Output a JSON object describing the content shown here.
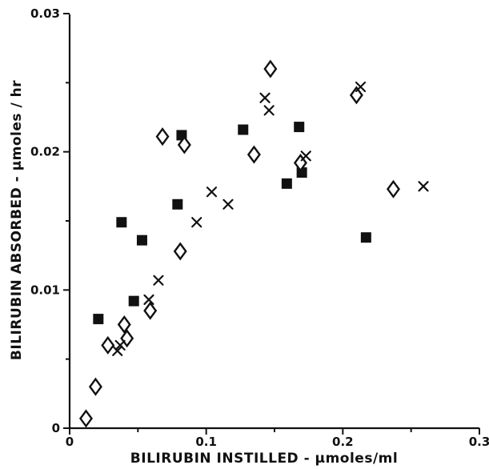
{
  "chart_data": {
    "type": "scatter",
    "xlabel": "BILIRUBIN INSTILLED - µmoles/ml",
    "ylabel": "BILIRUBIN ABSORBED - µmoles / hr",
    "xlim": [
      0,
      0.3
    ],
    "ylim": [
      0,
      0.03
    ],
    "x_ticks": [
      {
        "value": 0,
        "label": "0"
      },
      {
        "value": 0.1,
        "label": "0.1"
      },
      {
        "value": 0.2,
        "label": "0.2"
      },
      {
        "value": 0.3,
        "label": "0.3"
      }
    ],
    "y_ticks": [
      {
        "value": 0,
        "label": "0"
      },
      {
        "value": 0.01,
        "label": "0.01"
      },
      {
        "value": 0.02,
        "label": "0.02"
      },
      {
        "value": 0.03,
        "label": "0.03"
      }
    ],
    "x_minor_ticks": [
      0.05,
      0.15,
      0.25
    ],
    "y_minor_ticks": [
      0.005,
      0.015,
      0.025
    ],
    "grid": false,
    "series": [
      {
        "marker": "filled-square",
        "points": [
          [
            0.021,
            0.0079
          ],
          [
            0.038,
            0.0149
          ],
          [
            0.047,
            0.0092
          ],
          [
            0.053,
            0.0136
          ],
          [
            0.079,
            0.0162
          ],
          [
            0.082,
            0.0212
          ],
          [
            0.127,
            0.0216
          ],
          [
            0.159,
            0.0177
          ],
          [
            0.168,
            0.0218
          ],
          [
            0.17,
            0.0185
          ],
          [
            0.217,
            0.0138
          ]
        ]
      },
      {
        "marker": "open-diamond",
        "points": [
          [
            0.012,
            0.0007
          ],
          [
            0.019,
            0.003
          ],
          [
            0.028,
            0.006
          ],
          [
            0.04,
            0.0075
          ],
          [
            0.042,
            0.0065
          ],
          [
            0.059,
            0.0085
          ],
          [
            0.068,
            0.0211
          ],
          [
            0.081,
            0.0128
          ],
          [
            0.084,
            0.0205
          ],
          [
            0.135,
            0.0198
          ],
          [
            0.147,
            0.026
          ],
          [
            0.169,
            0.0192
          ],
          [
            0.21,
            0.0241
          ],
          [
            0.237,
            0.0173
          ]
        ]
      },
      {
        "marker": "cross",
        "points": [
          [
            0.035,
            0.0056
          ],
          [
            0.037,
            0.006
          ],
          [
            0.058,
            0.0093
          ],
          [
            0.065,
            0.0107
          ],
          [
            0.093,
            0.0149
          ],
          [
            0.104,
            0.0171
          ],
          [
            0.116,
            0.0162
          ],
          [
            0.143,
            0.0239
          ],
          [
            0.146,
            0.023
          ],
          [
            0.173,
            0.0197
          ],
          [
            0.213,
            0.0247
          ],
          [
            0.259,
            0.0175
          ]
        ]
      }
    ]
  }
}
